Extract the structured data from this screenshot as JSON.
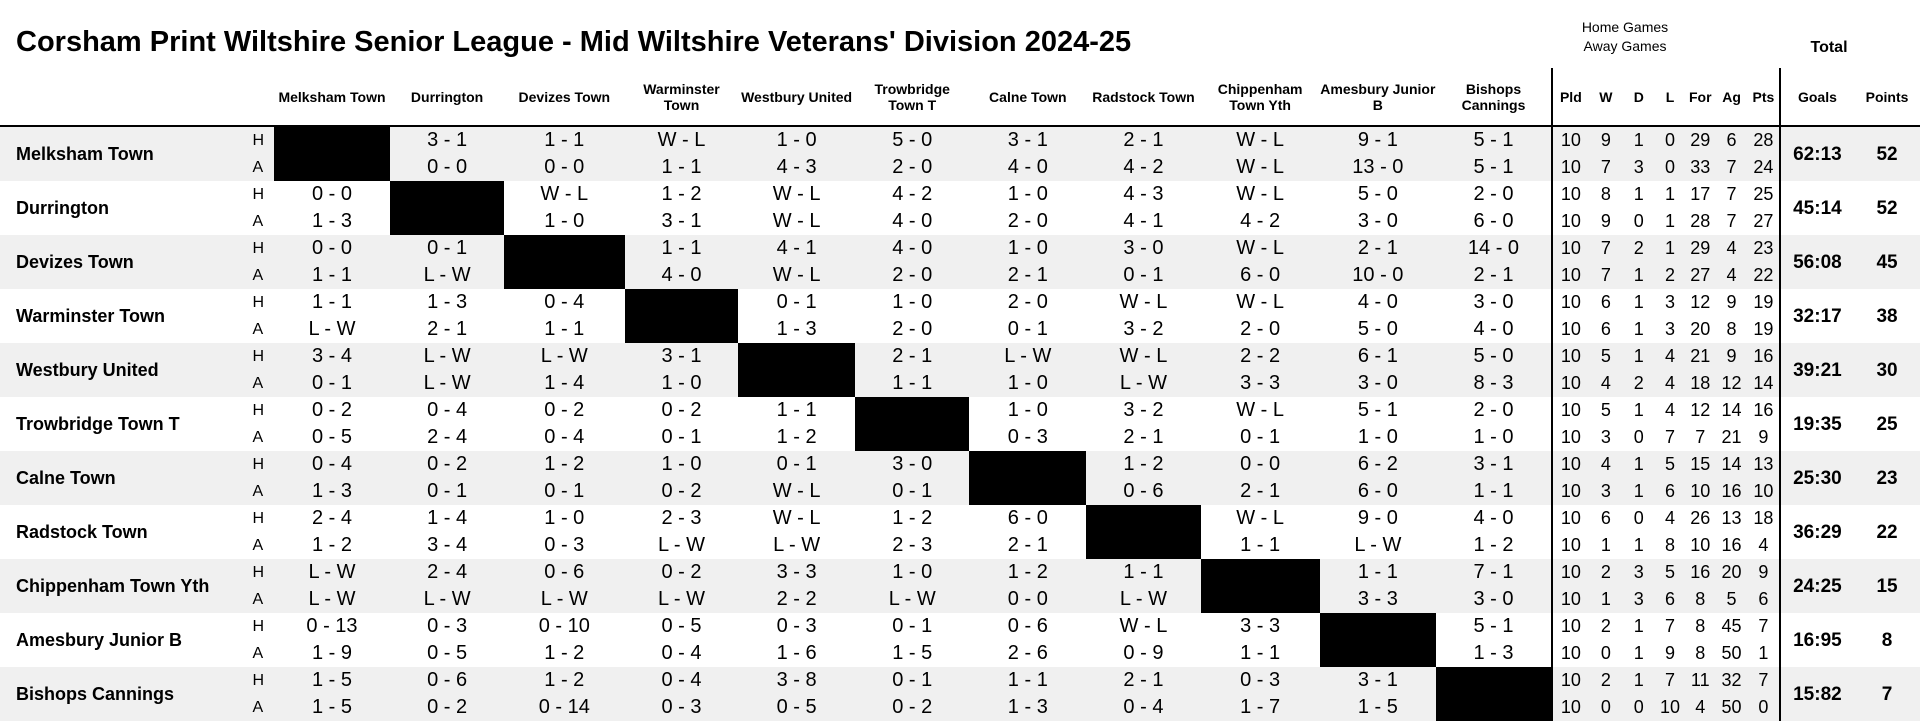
{
  "title": "Corsham Print Wiltshire Senior League - Mid Wiltshire Veterans' Division  2024-25",
  "legend": {
    "home": "Home Games",
    "away": "Away Games"
  },
  "total_label": "Total",
  "home_away": {
    "h": "H",
    "a": "A"
  },
  "column_headers": [
    "Melksham Town",
    "Durrington",
    "Devizes Town",
    "Warminster Town",
    "Westbury United",
    "Trowbridge Town T",
    "Calne Town",
    "Radstock Town",
    "Chippenham Town Yth",
    "Amesbury Junior B",
    "Bishops Cannings"
  ],
  "stat_headers": [
    "Pld",
    "W",
    "D",
    "L",
    "For",
    "Ag",
    "Pts"
  ],
  "total_headers": [
    "Goals",
    "Points"
  ],
  "teams": [
    {
      "name": "Melksham Town",
      "home": [
        "",
        "3 - 1",
        "1 - 1",
        "W - L",
        "1 - 0",
        "5 - 0",
        "3 - 1",
        "2 - 1",
        "W - L",
        "9 - 1",
        "5 - 1"
      ],
      "away": [
        "",
        "0 - 0",
        "0 - 0",
        "1 - 1",
        "4 - 3",
        "2 - 0",
        "4 - 0",
        "4 - 2",
        "W - L",
        "13 - 0",
        "5 - 1"
      ],
      "home_stats": [
        "10",
        "9",
        "1",
        "0",
        "29",
        "6",
        "28"
      ],
      "away_stats": [
        "10",
        "7",
        "3",
        "0",
        "33",
        "7",
        "24"
      ],
      "goals": "62:13",
      "points": "52"
    },
    {
      "name": "Durrington",
      "home": [
        "0 - 0",
        "",
        "W - L",
        "1 - 2",
        "W - L",
        "4 - 2",
        "1 - 0",
        "4 - 3",
        "W - L",
        "5 - 0",
        "2 - 0"
      ],
      "away": [
        "1 - 3",
        "",
        "1 - 0",
        "3 - 1",
        "W - L",
        "4 - 0",
        "2 - 0",
        "4 - 1",
        "4 - 2",
        "3 - 0",
        "6 - 0"
      ],
      "home_stats": [
        "10",
        "8",
        "1",
        "1",
        "17",
        "7",
        "25"
      ],
      "away_stats": [
        "10",
        "9",
        "0",
        "1",
        "28",
        "7",
        "27"
      ],
      "goals": "45:14",
      "points": "52"
    },
    {
      "name": "Devizes Town",
      "home": [
        "0 - 0",
        "0 - 1",
        "",
        "1 - 1",
        "4 - 1",
        "4 - 0",
        "1 - 0",
        "3 - 0",
        "W - L",
        "2 - 1",
        "14 - 0"
      ],
      "away": [
        "1 - 1",
        "L - W",
        "",
        "4 - 0",
        "W - L",
        "2 - 0",
        "2 - 1",
        "0 - 1",
        "6 - 0",
        "10 - 0",
        "2 - 1"
      ],
      "home_stats": [
        "10",
        "7",
        "2",
        "1",
        "29",
        "4",
        "23"
      ],
      "away_stats": [
        "10",
        "7",
        "1",
        "2",
        "27",
        "4",
        "22"
      ],
      "goals": "56:08",
      "points": "45"
    },
    {
      "name": "Warminster Town",
      "home": [
        "1 - 1",
        "1 - 3",
        "0 - 4",
        "",
        "0 - 1",
        "1 - 0",
        "2 - 0",
        "W - L",
        "W - L",
        "4 - 0",
        "3 - 0"
      ],
      "away": [
        "L - W",
        "2 - 1",
        "1 - 1",
        "",
        "1 - 3",
        "2 - 0",
        "0 - 1",
        "3 - 2",
        "2 - 0",
        "5 - 0",
        "4 - 0"
      ],
      "home_stats": [
        "10",
        "6",
        "1",
        "3",
        "12",
        "9",
        "19"
      ],
      "away_stats": [
        "10",
        "6",
        "1",
        "3",
        "20",
        "8",
        "19"
      ],
      "goals": "32:17",
      "points": "38"
    },
    {
      "name": "Westbury United",
      "home": [
        "3 - 4",
        "L - W",
        "L - W",
        "3 - 1",
        "",
        "2 - 1",
        "L - W",
        "W - L",
        "2 - 2",
        "6 - 1",
        "5 - 0"
      ],
      "away": [
        "0 - 1",
        "L - W",
        "1 - 4",
        "1 - 0",
        "",
        "1 - 1",
        "1 - 0",
        "L - W",
        "3 - 3",
        "3 - 0",
        "8 - 3"
      ],
      "home_stats": [
        "10",
        "5",
        "1",
        "4",
        "21",
        "9",
        "16"
      ],
      "away_stats": [
        "10",
        "4",
        "2",
        "4",
        "18",
        "12",
        "14"
      ],
      "goals": "39:21",
      "points": "30"
    },
    {
      "name": "Trowbridge Town T",
      "home": [
        "0 - 2",
        "0 - 4",
        "0 - 2",
        "0 - 2",
        "1 - 1",
        "",
        "1 - 0",
        "3 - 2",
        "W - L",
        "5 - 1",
        "2 - 0"
      ],
      "away": [
        "0 - 5",
        "2 - 4",
        "0 - 4",
        "0 - 1",
        "1 - 2",
        "",
        "0 - 3",
        "2 - 1",
        "0 - 1",
        "1 - 0",
        "1 - 0"
      ],
      "home_stats": [
        "10",
        "5",
        "1",
        "4",
        "12",
        "14",
        "16"
      ],
      "away_stats": [
        "10",
        "3",
        "0",
        "7",
        "7",
        "21",
        "9"
      ],
      "goals": "19:35",
      "points": "25"
    },
    {
      "name": "Calne Town",
      "home": [
        "0 - 4",
        "0 - 2",
        "1 - 2",
        "1 - 0",
        "0 - 1",
        "3 - 0",
        "",
        "1 - 2",
        "0 - 0",
        "6 - 2",
        "3 - 1"
      ],
      "away": [
        "1 - 3",
        "0 - 1",
        "0 - 1",
        "0 - 2",
        "W - L",
        "0 - 1",
        "",
        "0 - 6",
        "2 - 1",
        "6 - 0",
        "1 - 1"
      ],
      "home_stats": [
        "10",
        "4",
        "1",
        "5",
        "15",
        "14",
        "13"
      ],
      "away_stats": [
        "10",
        "3",
        "1",
        "6",
        "10",
        "16",
        "10"
      ],
      "goals": "25:30",
      "points": "23"
    },
    {
      "name": "Radstock Town",
      "home": [
        "2 - 4",
        "1 - 4",
        "1 - 0",
        "2 - 3",
        "W - L",
        "1 - 2",
        "6 - 0",
        "",
        "W - L",
        "9 - 0",
        "4 - 0"
      ],
      "away": [
        "1 - 2",
        "3 - 4",
        "0 - 3",
        "L - W",
        "L - W",
        "2 - 3",
        "2 - 1",
        "",
        "1 - 1",
        "L - W",
        "1 - 2"
      ],
      "home_stats": [
        "10",
        "6",
        "0",
        "4",
        "26",
        "13",
        "18"
      ],
      "away_stats": [
        "10",
        "1",
        "1",
        "8",
        "10",
        "16",
        "4"
      ],
      "goals": "36:29",
      "points": "22"
    },
    {
      "name": "Chippenham Town Yth",
      "home": [
        "L - W",
        "2 - 4",
        "0 - 6",
        "0 - 2",
        "3 - 3",
        "1 - 0",
        "1 - 2",
        "1 - 1",
        "",
        "1 - 1",
        "7 - 1"
      ],
      "away": [
        "L - W",
        "L - W",
        "L - W",
        "L - W",
        "2 - 2",
        "L - W",
        "0 - 0",
        "L - W",
        "",
        "3 - 3",
        "3 - 0"
      ],
      "home_stats": [
        "10",
        "2",
        "3",
        "5",
        "16",
        "20",
        "9"
      ],
      "away_stats": [
        "10",
        "1",
        "3",
        "6",
        "8",
        "5",
        "6"
      ],
      "goals": "24:25",
      "points": "15"
    },
    {
      "name": "Amesbury Junior B",
      "home": [
        "0 - 13",
        "0 - 3",
        "0 - 10",
        "0 - 5",
        "0 - 3",
        "0 - 1",
        "0 - 6",
        "W - L",
        "3 - 3",
        "",
        "5 - 1"
      ],
      "away": [
        "1 - 9",
        "0 - 5",
        "1 - 2",
        "0 - 4",
        "1 - 6",
        "1 - 5",
        "2 - 6",
        "0 - 9",
        "1 - 1",
        "",
        "1 - 3"
      ],
      "home_stats": [
        "10",
        "2",
        "1",
        "7",
        "8",
        "45",
        "7"
      ],
      "away_stats": [
        "10",
        "0",
        "1",
        "9",
        "8",
        "50",
        "1"
      ],
      "goals": "16:95",
      "points": "8"
    },
    {
      "name": "Bishops Cannings",
      "home": [
        "1 - 5",
        "0 - 6",
        "1 - 2",
        "0 - 4",
        "3 - 8",
        "0 - 1",
        "1 - 1",
        "2 - 1",
        "0 - 3",
        "3 - 1",
        ""
      ],
      "away": [
        "1 - 5",
        "0 - 2",
        "0 - 14",
        "0 - 3",
        "0 - 5",
        "0 - 2",
        "1 - 3",
        "0 - 4",
        "1 - 7",
        "1 - 5",
        ""
      ],
      "home_stats": [
        "10",
        "2",
        "1",
        "7",
        "11",
        "32",
        "7"
      ],
      "away_stats": [
        "10",
        "0",
        "0",
        "10",
        "4",
        "50",
        "0"
      ],
      "goals": "15:82",
      "points": "7"
    }
  ]
}
